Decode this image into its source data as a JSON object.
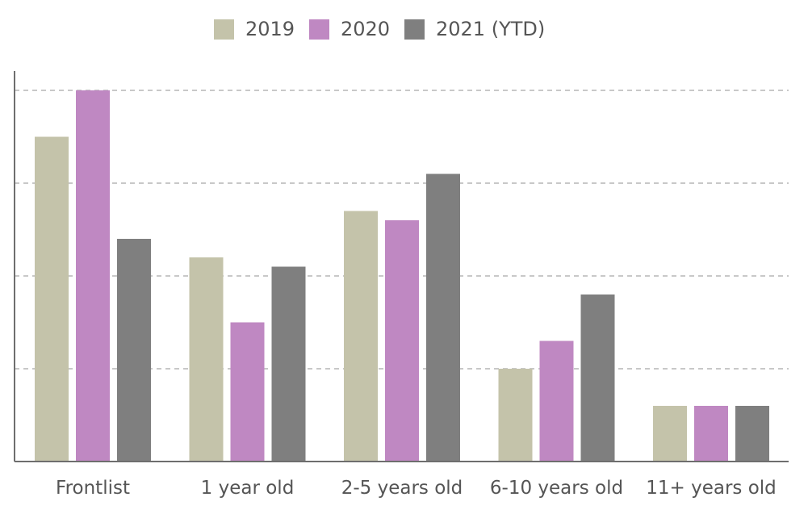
{
  "chart_data": {
    "type": "bar",
    "categories": [
      "Frontlist",
      "1 year old",
      "2-5 years old",
      "6-10 years old",
      "11+ years old"
    ],
    "series": [
      {
        "name": "2019",
        "color": "#c4c3aa",
        "values": [
          35,
          22,
          27,
          10,
          6
        ]
      },
      {
        "name": "2020",
        "color": "#bf88c2",
        "values": [
          40,
          15,
          26,
          13,
          6
        ]
      },
      {
        "name": "2021 (YTD)",
        "color": "#7f7f7f",
        "values": [
          24,
          21,
          31,
          18,
          6
        ]
      }
    ],
    "ylim": [
      0,
      40
    ],
    "y_gridlines": [
      10,
      20,
      30,
      40
    ],
    "grid": true,
    "y_tick_labels_shown": false,
    "legend_position": "top-center",
    "title": "",
    "xlabel": "",
    "ylabel": ""
  }
}
